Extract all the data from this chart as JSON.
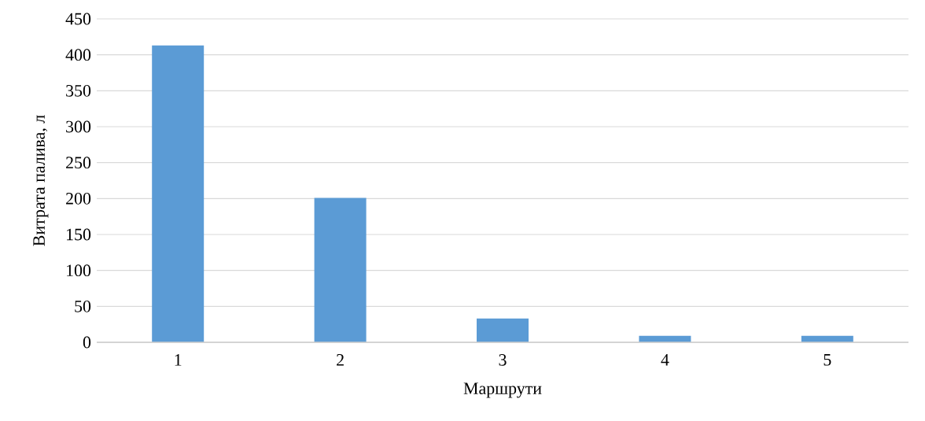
{
  "chart_data": {
    "type": "bar",
    "xlabel": "Маршрути",
    "ylabel": "Витрата палива, л",
    "categories": [
      "1",
      "2",
      "3",
      "4",
      "5"
    ],
    "values": [
      413,
      201,
      33,
      9,
      9
    ],
    "color": "#5b9bd5",
    "ylim": [
      0,
      450
    ],
    "yticks": [
      0,
      50,
      100,
      150,
      200,
      250,
      300,
      350,
      400,
      450
    ],
    "grid": "y"
  }
}
